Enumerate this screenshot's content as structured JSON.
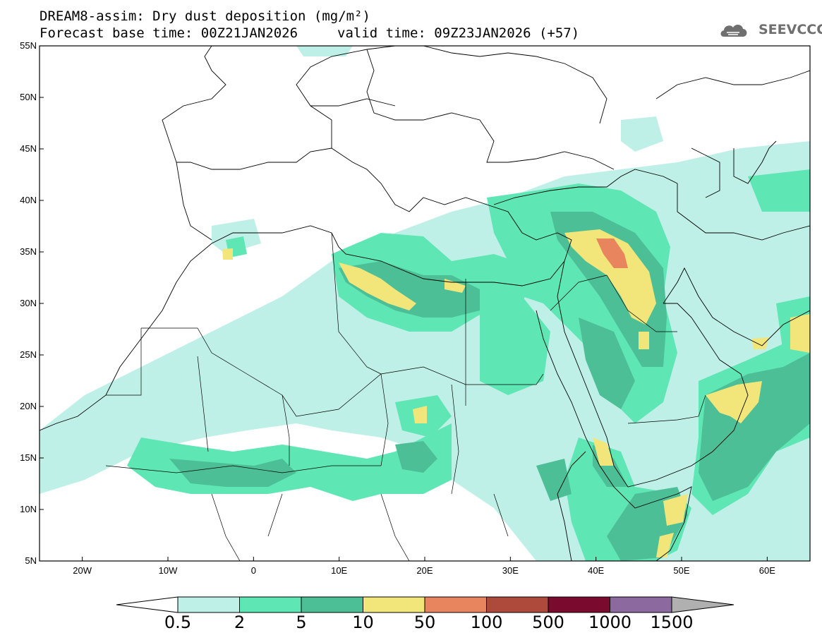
{
  "header": {
    "title_line1": "DREAM8-assim: Dry dust deposition (mg/m²)",
    "title_line2a": "Forecast base time: 00Z21JAN2026",
    "title_line2b": "valid time: 09Z23JAN2026 (+57)",
    "logo_text": "SEEVCCC"
  },
  "map": {
    "lat_labels": [
      "55N",
      "50N",
      "45N",
      "40N",
      "35N",
      "30N",
      "25N",
      "20N",
      "15N",
      "10N",
      "5N"
    ],
    "lon_labels": [
      "20W",
      "10W",
      "0",
      "10E",
      "20E",
      "30E",
      "40E",
      "50E",
      "60E"
    ],
    "lon_range": [
      -25,
      65
    ],
    "lat_range": [
      5,
      55
    ]
  },
  "colorbar": {
    "labels": [
      "0.5",
      "2",
      "5",
      "10",
      "50",
      "100",
      "500",
      "1000",
      "1500"
    ],
    "colors": [
      "#bff0e8",
      "#5ee6b4",
      "#4dbf96",
      "#f2e67a",
      "#e8845e",
      "#ae4a3c",
      "#7a0a2e",
      "#8c6aa0",
      "#b0b0b0"
    ],
    "lower_extend_color": "#ffffff"
  },
  "legend_levels_colors": {
    "level1": "#bff0e8",
    "level2": "#5ee6b4",
    "level3": "#4dbf96",
    "level4": "#f2e67a",
    "level5": "#e8845e"
  }
}
